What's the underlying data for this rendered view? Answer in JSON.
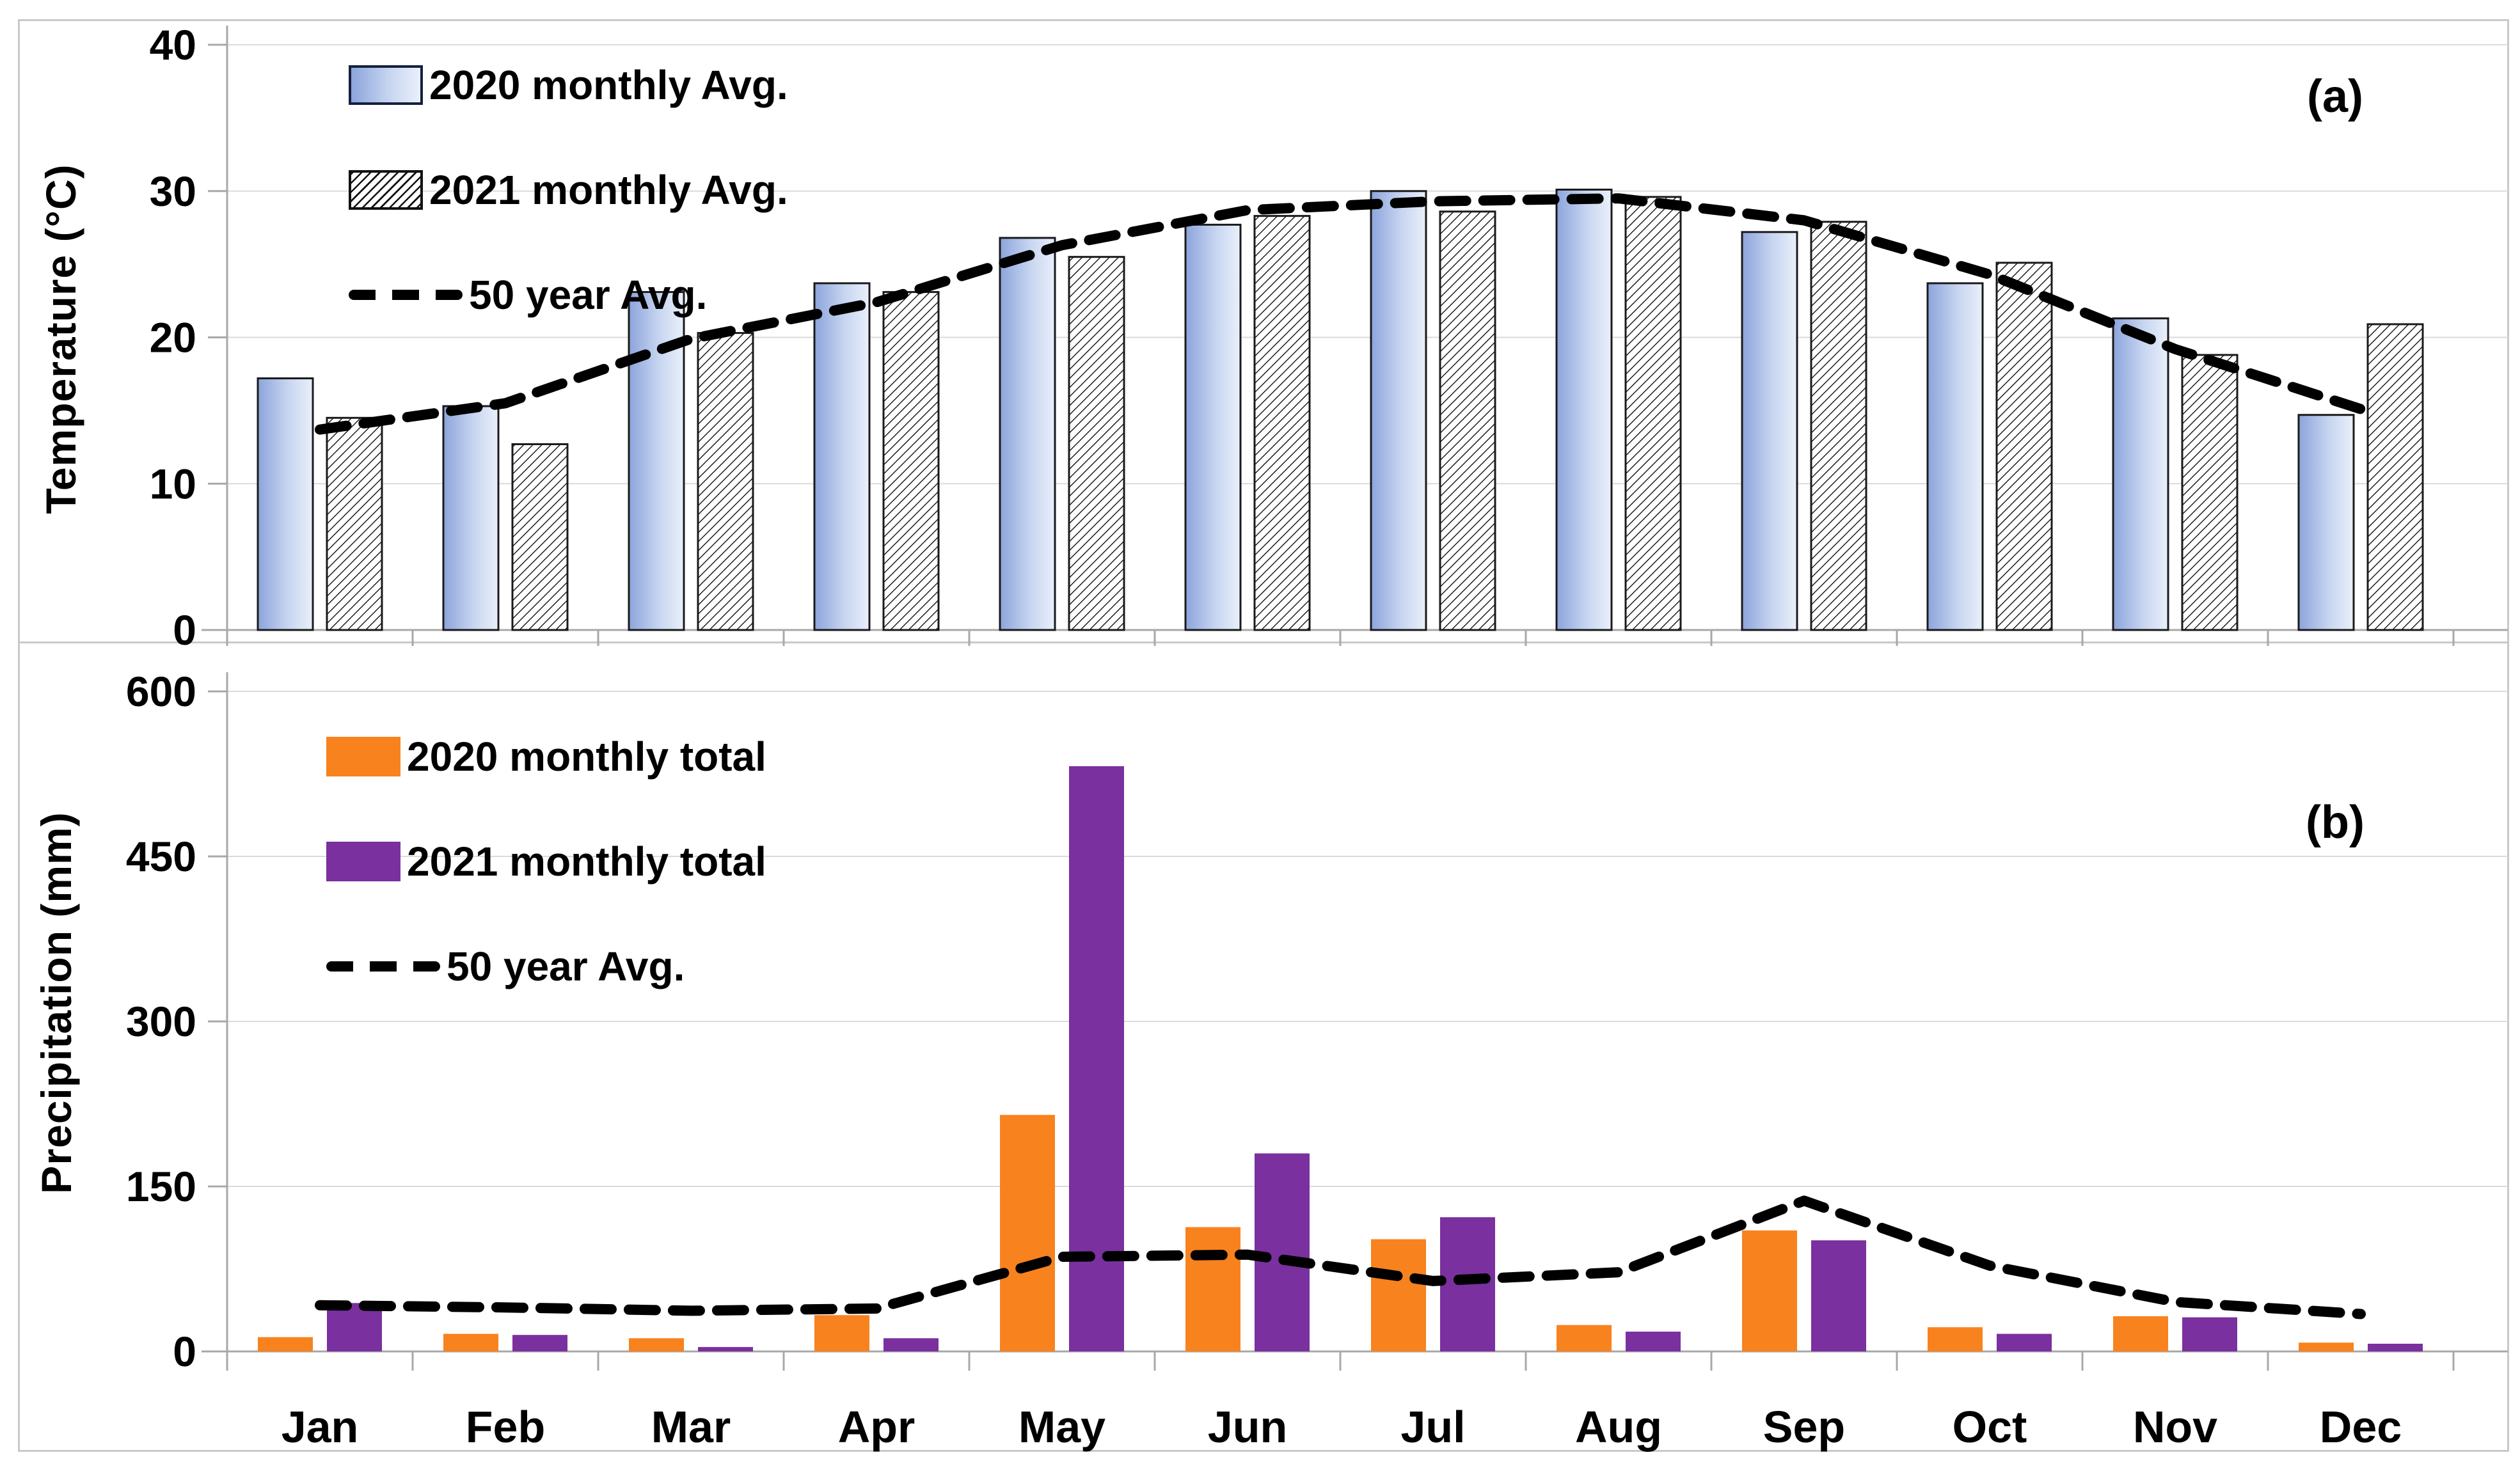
{
  "figure_title": "",
  "colors": {
    "bar_2020_blue_left": "#8CA4DC",
    "bar_2020_blue_right": "#EAF0FB",
    "bar_outline": "#1a1a1a",
    "bar_2020_orange": "#F8821E",
    "bar_2021_purple": "#7A309E",
    "line_50yr": "#000000",
    "gridline": "#DBDBDB",
    "axis": "#A8A8A8",
    "frame": "#C9C9C9"
  },
  "chart_data": [
    {
      "type": "bar",
      "panel": "a",
      "panel_label": "(a)",
      "ylabel": "Temperature (°C)",
      "ylim": [
        0,
        40
      ],
      "yticks": [
        0,
        10,
        20,
        30,
        40
      ],
      "grid": "horizontal-light",
      "legend_position": "top-left",
      "show_month_labels": false,
      "categories": [
        "Jan",
        "Feb",
        "Mar",
        "Apr",
        "May",
        "Jun",
        "Jul",
        "Aug",
        "Sep",
        "Oct",
        "Nov",
        "Dec"
      ],
      "series": [
        {
          "name": "2020 monthly Avg.",
          "type": "bar",
          "style": "gradient-blue",
          "values": [
            17.2,
            15.3,
            23.1,
            23.7,
            26.8,
            27.7,
            30.0,
            30.1,
            27.2,
            23.7,
            21.3,
            14.7
          ]
        },
        {
          "name": "2021 monthly Avg.",
          "type": "bar",
          "style": "hatched",
          "values": [
            14.5,
            12.7,
            20.3,
            23.1,
            25.5,
            28.3,
            28.6,
            29.6,
            27.9,
            25.1,
            18.8,
            20.9
          ]
        },
        {
          "name": "50 year Avg.",
          "type": "line",
          "style": "dashed",
          "values": [
            13.7,
            15.5,
            19.9,
            22.4,
            26.3,
            28.7,
            29.3,
            29.5,
            28.0,
            24.3,
            19.2,
            15.1
          ]
        }
      ]
    },
    {
      "type": "bar",
      "panel": "b",
      "panel_label": "(b)",
      "ylabel": "Precipitation (mm)",
      "ylim": [
        0,
        600
      ],
      "yticks": [
        0,
        150,
        300,
        450,
        600
      ],
      "grid": "horizontal-light",
      "legend_position": "top-left",
      "show_month_labels": true,
      "categories": [
        "Jan",
        "Feb",
        "Mar",
        "Apr",
        "May",
        "Jun",
        "Jul",
        "Aug",
        "Sep",
        "Oct",
        "Nov",
        "Dec"
      ],
      "series": [
        {
          "name": "2020 monthly total",
          "type": "bar",
          "style": "solid",
          "color": "#F8821E",
          "values": [
            13,
            16,
            12,
            33,
            215,
            113,
            102,
            24,
            110,
            22,
            32,
            8
          ]
        },
        {
          "name": "2021 monthly total",
          "type": "bar",
          "style": "solid",
          "color": "#7A309E",
          "values": [
            44,
            15,
            4,
            12,
            532,
            180,
            122,
            18,
            101,
            16,
            31,
            7
          ]
        },
        {
          "name": "50 year Avg.",
          "type": "line",
          "style": "dashed",
          "values": [
            42,
            40,
            37,
            39,
            86,
            88,
            64,
            72,
            137,
            78,
            45,
            34
          ]
        }
      ]
    }
  ]
}
